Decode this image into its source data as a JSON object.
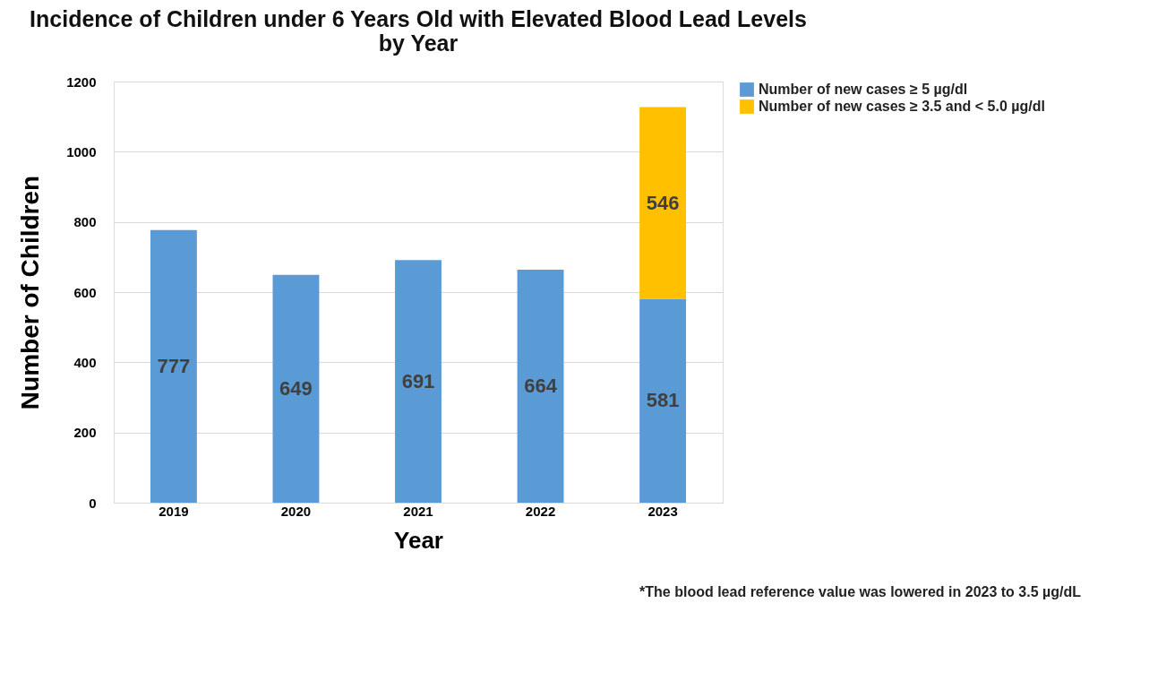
{
  "chart_data": {
    "type": "bar",
    "title": "Incidence of Children under 6 Years Old with Elevated Blood Lead Levels\nby Year",
    "xlabel": "Year",
    "ylabel": "Number of Children",
    "categories": [
      "2019",
      "2020",
      "2021",
      "2022",
      "2023"
    ],
    "series": [
      {
        "name": "Number of new cases ≥ 5 µg/dl",
        "color": "#5b9bd5",
        "values": [
          777,
          649,
          691,
          664,
          581
        ]
      },
      {
        "name": "Number of new cases ≥ 3.5 and < 5.0 µg/dl",
        "color": "#ffc000",
        "values": [
          null,
          null,
          null,
          null,
          546
        ]
      }
    ],
    "stacked": true,
    "data_labels": true,
    "ylim": [
      0,
      1200
    ],
    "yticks": [
      0,
      200,
      400,
      600,
      800,
      1000,
      1200
    ],
    "grid": "y",
    "legend": "right",
    "annotations": [
      "*The blood lead reference value was lowered in 2023 to 3.5 µg/dL"
    ]
  }
}
